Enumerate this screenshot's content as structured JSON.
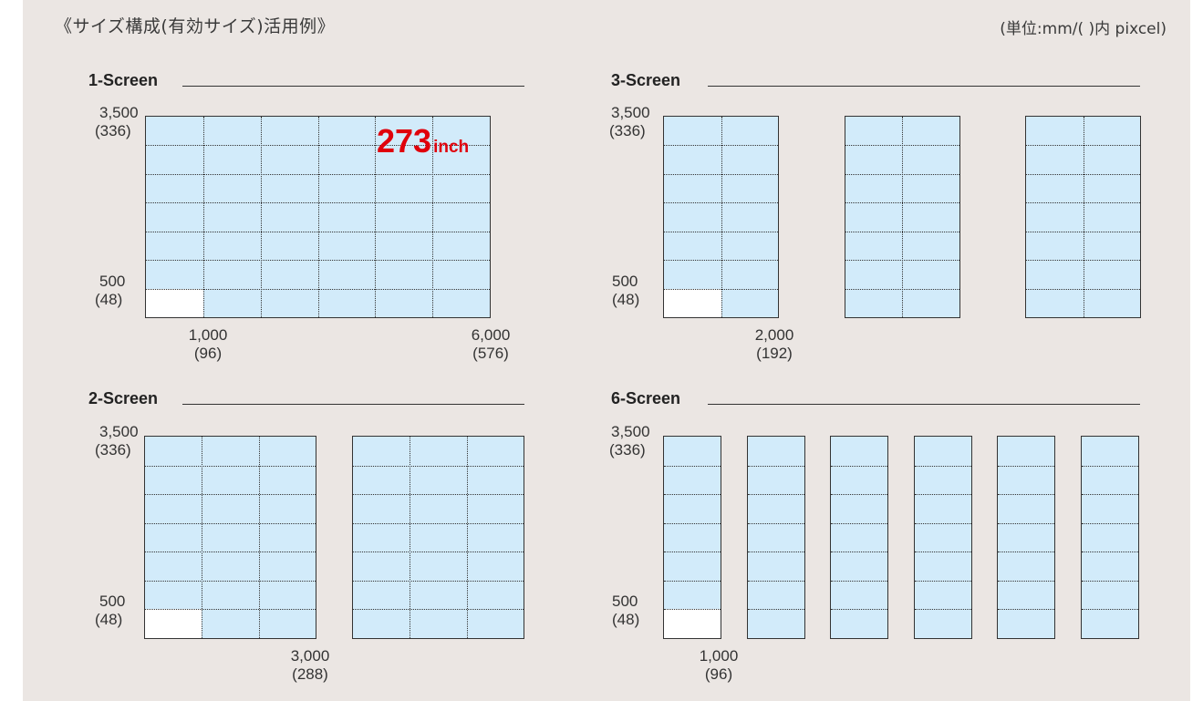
{
  "page": {
    "title": "《サイズ構成(有効サイズ)活用例》",
    "unit_note": "(単位:mm/( )内 pixcel)"
  },
  "colors": {
    "background": "#ebe6e3",
    "panel_fill": "#d2ebfa",
    "module_cell": "#ffffff",
    "callout": "#e0000b"
  },
  "sections": {
    "one": {
      "heading": "1-Screen",
      "screens": 1,
      "cols": 6,
      "rows": 7,
      "y_top": "3,500",
      "y_top_px": "(336)",
      "y_bottom": "500",
      "y_bottom_px": "(48)",
      "x_first": "1,000",
      "x_first_px": "(96)",
      "x_total": "6,000",
      "x_total_px": "(576)",
      "callout_value": "273",
      "callout_unit": "inch"
    },
    "three": {
      "heading": "3-Screen",
      "screens": 3,
      "cols": 2,
      "rows": 7,
      "y_top": "3,500",
      "y_top_px": "(336)",
      "y_bottom": "500",
      "y_bottom_px": "(48)",
      "x_width": "2,000",
      "x_width_px": "(192)"
    },
    "two": {
      "heading": "2-Screen",
      "screens": 2,
      "cols": 3,
      "rows": 7,
      "y_top": "3,500",
      "y_top_px": "(336)",
      "y_bottom": "500",
      "y_bottom_px": "(48)",
      "x_width": "3,000",
      "x_width_px": "(288)"
    },
    "six": {
      "heading": "6-Screen",
      "screens": 6,
      "cols": 1,
      "rows": 7,
      "y_top": "3,500",
      "y_top_px": "(336)",
      "y_bottom": "500",
      "y_bottom_px": "(48)",
      "x_width": "1,000",
      "x_width_px": "(96)"
    }
  }
}
